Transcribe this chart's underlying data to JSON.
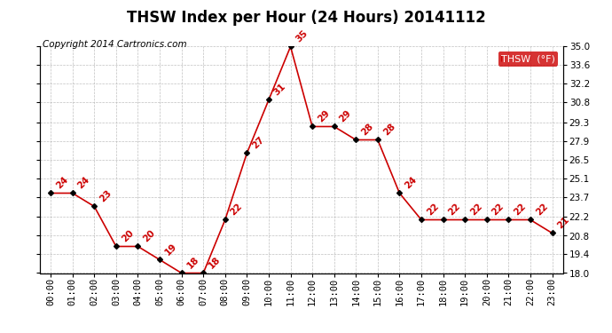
{
  "title": "THSW Index per Hour (24 Hours) 20141112",
  "copyright_text": "Copyright 2014 Cartronics.com",
  "legend_label": "THSW  (°F)",
  "hours": [
    0,
    1,
    2,
    3,
    4,
    5,
    6,
    7,
    8,
    9,
    10,
    11,
    12,
    13,
    14,
    15,
    16,
    17,
    18,
    19,
    20,
    21,
    22,
    23
  ],
  "values": [
    24,
    24,
    23,
    20,
    20,
    19,
    18,
    18,
    22,
    27,
    31,
    35,
    29,
    29,
    28,
    28,
    24,
    22,
    22,
    22,
    22,
    22,
    22,
    21
  ],
  "x_labels": [
    "00:00",
    "01:00",
    "02:00",
    "03:00",
    "04:00",
    "05:00",
    "06:00",
    "07:00",
    "08:00",
    "09:00",
    "10:00",
    "11:00",
    "12:00",
    "13:00",
    "14:00",
    "15:00",
    "16:00",
    "17:00",
    "18:00",
    "19:00",
    "20:00",
    "21:00",
    "22:00",
    "23:00"
  ],
  "y_ticks": [
    18.0,
    19.4,
    20.8,
    22.2,
    23.7,
    25.1,
    26.5,
    27.9,
    29.3,
    30.8,
    32.2,
    33.6,
    35.0
  ],
  "ylim": [
    18.0,
    35.0
  ],
  "line_color": "#cc0000",
  "marker_color": "#000000",
  "label_color": "#cc0000",
  "background_color": "#ffffff",
  "grid_color": "#b0b0b0",
  "legend_bg": "#cc0000",
  "legend_text_color": "#ffffff",
  "title_fontsize": 12,
  "copyright_fontsize": 7.5,
  "tick_fontsize": 7.5,
  "label_fontsize": 7.5
}
